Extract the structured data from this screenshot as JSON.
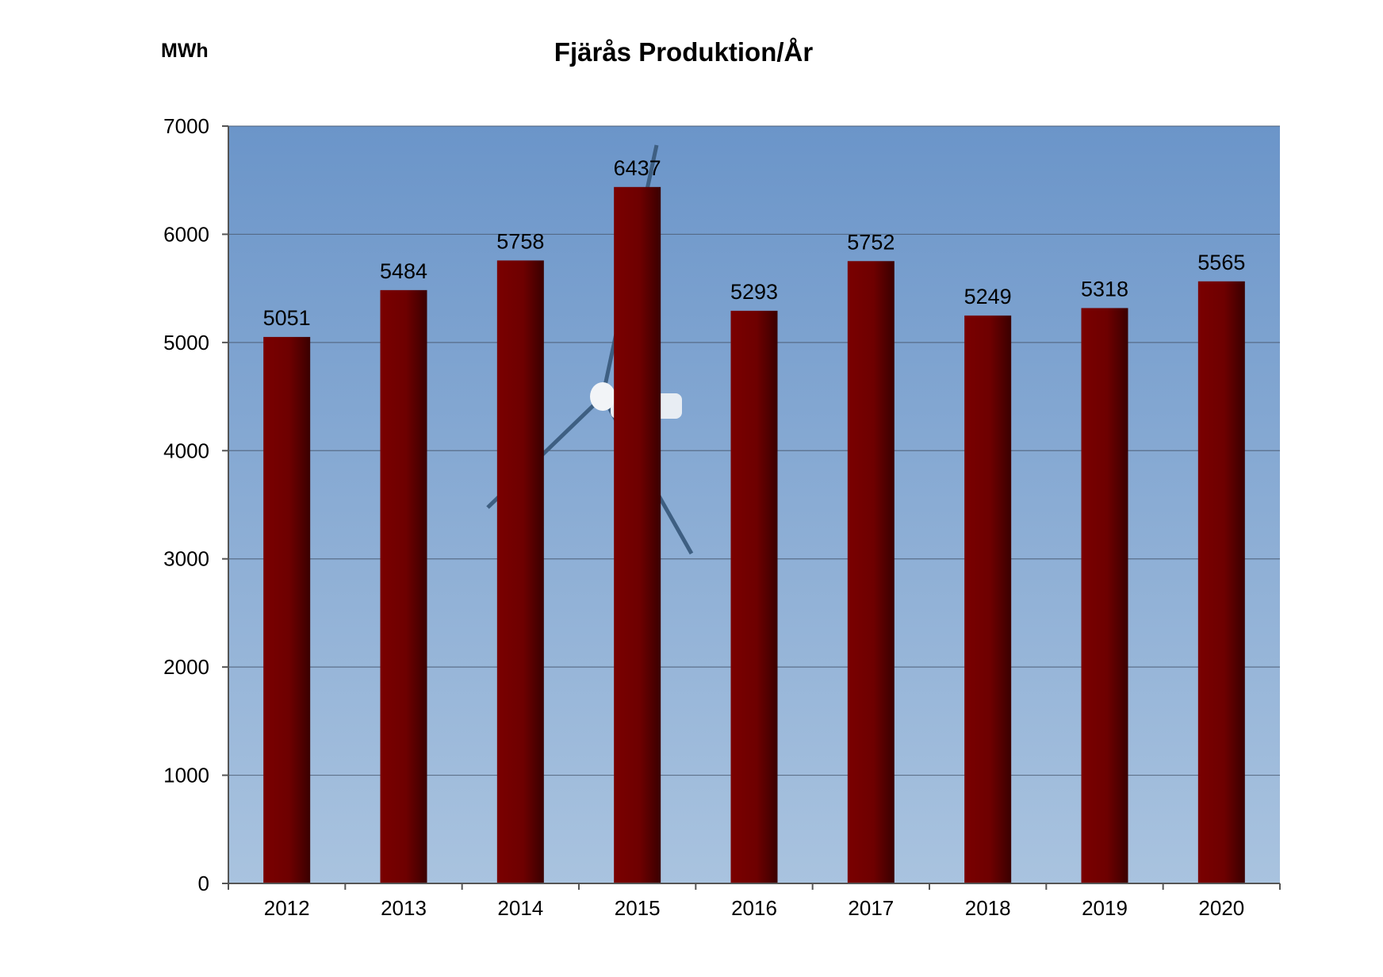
{
  "chart_data": {
    "type": "bar",
    "title": "Fjärås Produktion/År",
    "ylabel": "MWh",
    "xlabel": "",
    "categories": [
      "2012",
      "2013",
      "2014",
      "2015",
      "2016",
      "2017",
      "2018",
      "2019",
      "2020"
    ],
    "values": [
      5051,
      5484,
      5758,
      6437,
      5293,
      5752,
      5249,
      5318,
      5565
    ],
    "data_labels": [
      "5051",
      "5484",
      "5758",
      "6437",
      "5293",
      "5752",
      "5249",
      "5318",
      "5565"
    ],
    "ylim": [
      0,
      7000
    ],
    "yticks": [
      "0",
      "1000",
      "2000",
      "3000",
      "4000",
      "5000",
      "6000",
      "7000"
    ],
    "grid": true,
    "legend": "none",
    "colors": {
      "bar": "#7a0000",
      "bar_dark": "#3a0000",
      "sky_top": "#6b95c9",
      "sky_bottom": "#a9c3df",
      "gridline": "#4a5a70",
      "axis": "#555555"
    }
  }
}
